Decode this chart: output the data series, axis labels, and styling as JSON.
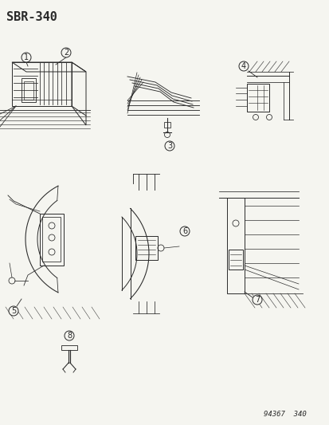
{
  "title": "SBR–340",
  "footer": "94367  340",
  "bg_color": "#f5f5f0",
  "title_fontsize": 11,
  "footer_fontsize": 6.5,
  "line_color": "#2a2a2a",
  "label_fontsize": 7,
  "lw": 0.7
}
